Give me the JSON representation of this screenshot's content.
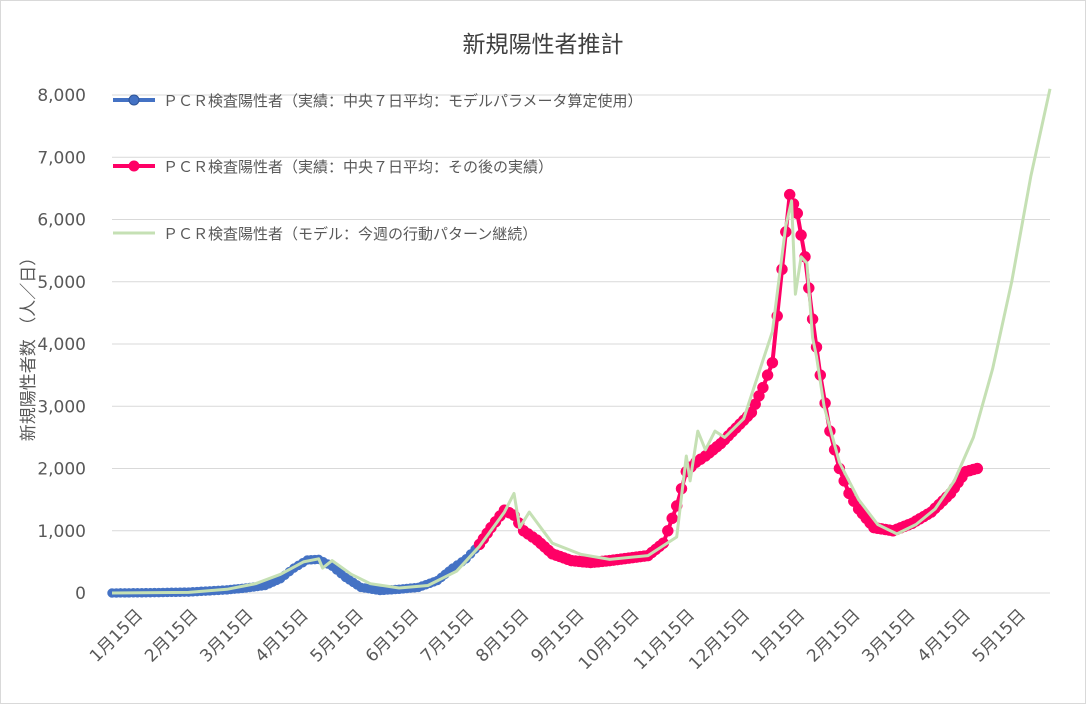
{
  "chart_data": {
    "type": "line",
    "title": "新規陽性者推計",
    "ylabel": "新規陽性者数 （人／日）",
    "xlabel": "",
    "ylim": [
      0,
      8000
    ],
    "y_ticks": [
      "0",
      "1,000",
      "2,000",
      "3,000",
      "4,000",
      "5,000",
      "6,000",
      "7,000",
      "8,000"
    ],
    "x_ticks": [
      "1月15日",
      "2月15日",
      "3月15日",
      "4月15日",
      "5月15日",
      "6月15日",
      "7月15日",
      "8月15日",
      "9月15日",
      "10月15日",
      "11月15日",
      "12月15日",
      "1月15日",
      "2月15日",
      "3月15日",
      "4月15日",
      "5月15日"
    ],
    "grid": "horizontal",
    "legend_position": "top-left",
    "colors": {
      "blue": "#4472c4",
      "pink": "#ff0066",
      "green": "#c5e0b4"
    },
    "series": [
      {
        "name": "ＰＣＲ検査陽性者（実績：中央７日平均：モデルパラメータ算定使用）",
        "style": "line-markers",
        "x": [
          0,
          20,
          40,
          60,
          70,
          80,
          88,
          95,
          102,
          108,
          115,
          122,
          130,
          140,
          150,
          160,
          170,
          178,
          185,
          192
        ],
        "y": [
          0,
          5,
          15,
          50,
          80,
          120,
          230,
          400,
          530,
          540,
          430,
          250,
          90,
          40,
          60,
          90,
          200,
          400,
          550,
          780
        ]
      },
      {
        "name": "ＰＣＲ検査陽性者（実績：中央７日平均：その後の実績）",
        "style": "line-markers",
        "x": [
          192,
          198,
          205,
          210,
          215,
          222,
          230,
          240,
          250,
          260,
          270,
          280,
          288,
          295,
          300,
          305,
          310,
          318,
          326,
          334,
          340,
          345,
          350,
          354,
          358,
          362,
          366,
          370,
          375,
          380,
          385,
          390,
          398,
          408,
          418,
          428,
          438,
          446,
          452
        ],
        "y": [
          780,
          1050,
          1330,
          1250,
          1000,
          850,
          630,
          520,
          490,
          520,
          560,
          600,
          800,
          1400,
          1950,
          2100,
          2200,
          2400,
          2650,
          2900,
          3300,
          3700,
          5200,
          6400,
          6100,
          5400,
          4400,
          3500,
          2600,
          2000,
          1600,
          1350,
          1050,
          1000,
          1120,
          1300,
          1600,
          1950,
          2000
        ]
      },
      {
        "name": "ＰＣＲ検査陽性者（モデル：今週の行動パターン継続）",
        "style": "line",
        "x": [
          0,
          40,
          60,
          75,
          88,
          100,
          108,
          110,
          115,
          125,
          135,
          150,
          165,
          180,
          192,
          205,
          210,
          213,
          218,
          230,
          245,
          260,
          280,
          295,
          300,
          302,
          306,
          310,
          315,
          320,
          330,
          345,
          352,
          355,
          357,
          360,
          363,
          366,
          368,
          372,
          380,
          390,
          400,
          410,
          420,
          430,
          440,
          450,
          460,
          470,
          480,
          490
        ],
        "y": [
          0,
          10,
          60,
          150,
          300,
          500,
          550,
          400,
          520,
          300,
          150,
          80,
          120,
          350,
          750,
          1300,
          1600,
          1050,
          1300,
          800,
          620,
          540,
          600,
          900,
          2200,
          1800,
          2600,
          2300,
          2600,
          2500,
          2800,
          4200,
          5900,
          6300,
          4800,
          5400,
          5300,
          4100,
          3800,
          3000,
          2100,
          1500,
          1100,
          950,
          1100,
          1350,
          1800,
          2500,
          3600,
          5000,
          6700,
          8100
        ]
      }
    ]
  }
}
